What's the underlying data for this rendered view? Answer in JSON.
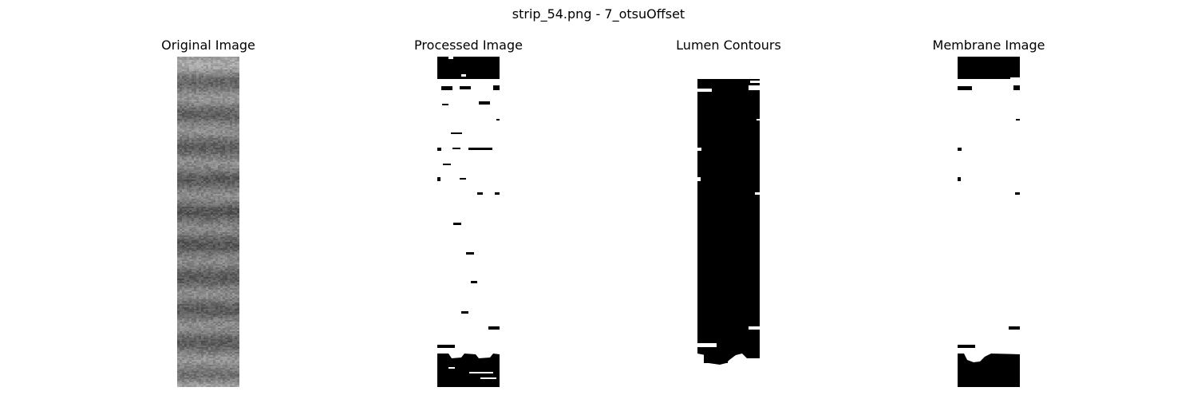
{
  "figure": {
    "title": "strip_54.png - 7_otsuOffset"
  },
  "panels": [
    {
      "id": "original",
      "title": "Original Image"
    },
    {
      "id": "processed",
      "title": "Processed Image"
    },
    {
      "id": "lumen",
      "title": "Lumen Contours"
    },
    {
      "id": "membrane",
      "title": "Membrane Image"
    }
  ],
  "colors": {
    "background": "#ffffff",
    "foreground": "#000000",
    "grey_mid": "#6e6e6e"
  }
}
